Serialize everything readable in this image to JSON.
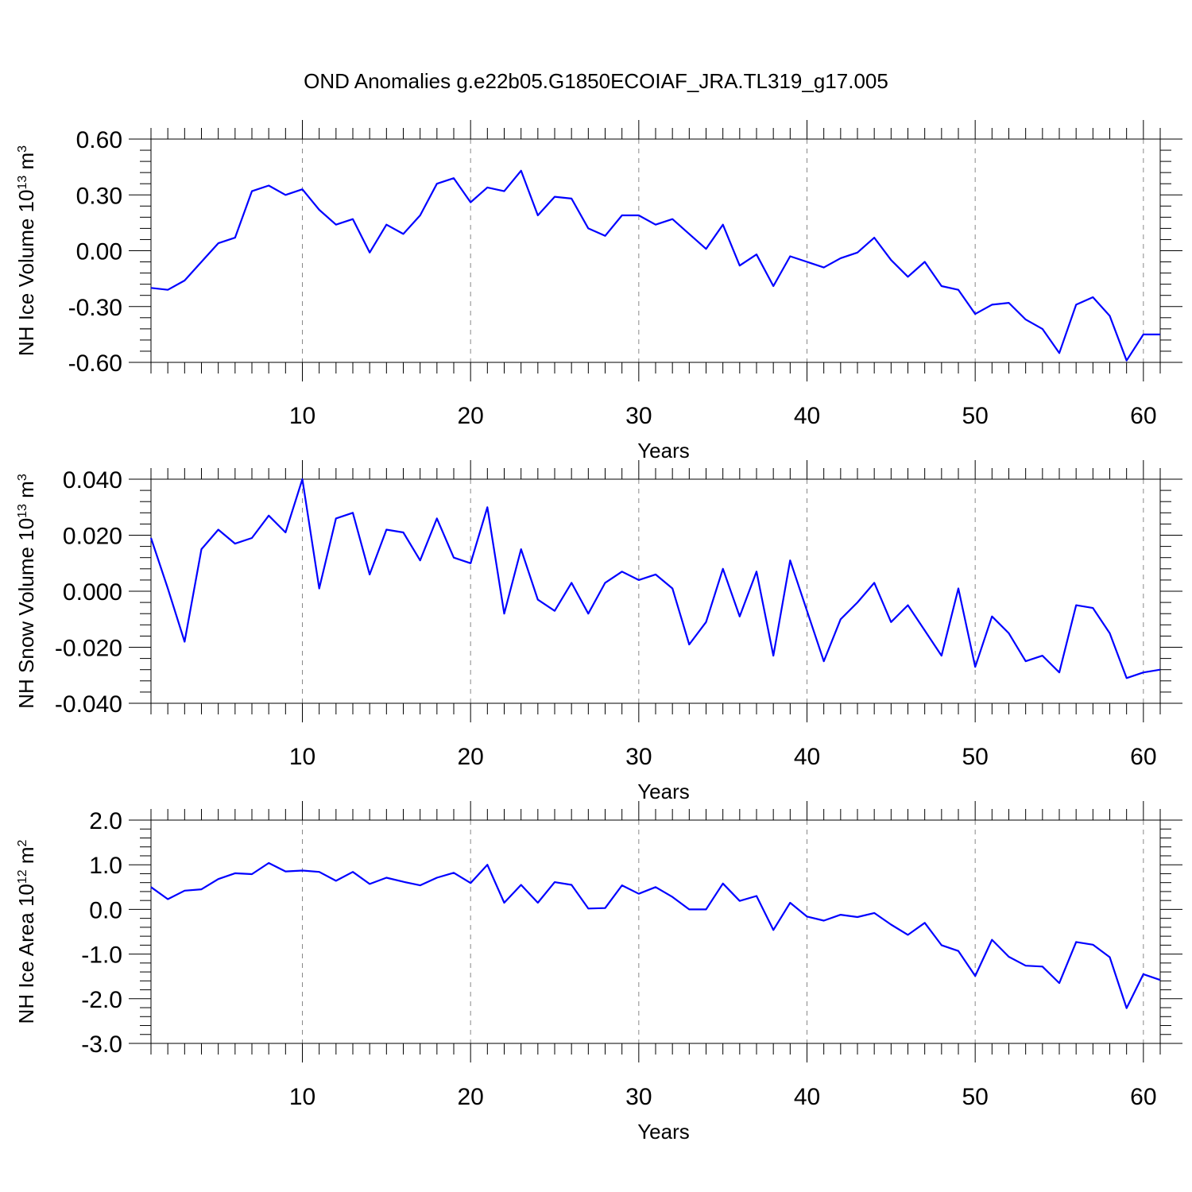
{
  "figure": {
    "title": "OND Anomalies g.e22b05.G1850ECOIAF_JRA.TL319_g17.005"
  },
  "colors": {
    "series": "#0000ff"
  },
  "chart_data": [
    {
      "type": "line",
      "ylabel": {
        "text": "NH Ice Volume 10",
        "sup1": "13",
        "mid": " m",
        "sup2": "3"
      },
      "xlabel": "Years",
      "xlim": [
        1,
        61
      ],
      "ylim": [
        -0.6,
        0.6
      ],
      "xticks": [
        "10",
        "20",
        "30",
        "40",
        "50",
        "60"
      ],
      "yticks": [
        "-0.60",
        "-0.30",
        "0.00",
        "0.30",
        "0.60"
      ],
      "grid_x": true,
      "x": [
        1,
        2,
        3,
        4,
        5,
        6,
        7,
        8,
        9,
        10,
        11,
        12,
        13,
        14,
        15,
        16,
        17,
        18,
        19,
        20,
        21,
        22,
        23,
        24,
        25,
        26,
        27,
        28,
        29,
        30,
        31,
        32,
        33,
        34,
        35,
        36,
        37,
        38,
        39,
        40,
        41,
        42,
        43,
        44,
        45,
        46,
        47,
        48,
        49,
        50,
        51,
        52,
        53,
        54,
        55,
        56,
        57,
        58,
        59,
        60,
        61
      ],
      "series": [
        {
          "values": [
            -0.2,
            -0.21,
            -0.16,
            -0.06,
            0.04,
            0.07,
            0.32,
            0.35,
            0.3,
            0.33,
            0.22,
            0.14,
            0.17,
            -0.01,
            0.14,
            0.09,
            0.19,
            0.36,
            0.39,
            0.26,
            0.34,
            0.32,
            0.43,
            0.19,
            0.29,
            0.28,
            0.12,
            0.08,
            0.19,
            0.19,
            0.14,
            0.17,
            0.09,
            0.01,
            0.14,
            -0.08,
            -0.02,
            -0.19,
            -0.03,
            -0.06,
            -0.09,
            -0.04,
            -0.01,
            0.07,
            -0.05,
            -0.14,
            -0.06,
            -0.19,
            -0.21,
            -0.34,
            -0.29,
            -0.28,
            -0.37,
            -0.42,
            -0.55,
            -0.29,
            -0.25,
            -0.35,
            -0.59,
            -0.45,
            -0.45
          ]
        }
      ]
    },
    {
      "type": "line",
      "ylabel": {
        "text": "NH Snow Volume 10",
        "sup1": "13",
        "mid": " m",
        "sup2": "3"
      },
      "xlabel": "Years",
      "xlim": [
        1,
        61
      ],
      "ylim": [
        -0.04,
        0.04
      ],
      "xticks": [
        "10",
        "20",
        "30",
        "40",
        "50",
        "60"
      ],
      "yticks": [
        "-0.040",
        "-0.020",
        "0.000",
        "0.020",
        "0.040"
      ],
      "grid_x": true,
      "x": [
        1,
        2,
        3,
        4,
        5,
        6,
        7,
        8,
        9,
        10,
        11,
        12,
        13,
        14,
        15,
        16,
        17,
        18,
        19,
        20,
        21,
        22,
        23,
        24,
        25,
        26,
        27,
        28,
        29,
        30,
        31,
        32,
        33,
        34,
        35,
        36,
        37,
        38,
        39,
        40,
        41,
        42,
        43,
        44,
        45,
        46,
        47,
        48,
        49,
        50,
        51,
        52,
        53,
        54,
        55,
        56,
        57,
        58,
        59,
        60,
        61
      ],
      "series": [
        {
          "values": [
            0.019,
            0.001,
            -0.018,
            0.015,
            0.022,
            0.017,
            0.019,
            0.027,
            0.021,
            0.04,
            0.001,
            0.026,
            0.028,
            0.006,
            0.022,
            0.021,
            0.011,
            0.026,
            0.012,
            0.01,
            0.03,
            -0.008,
            0.015,
            -0.003,
            -0.007,
            0.003,
            -0.008,
            0.003,
            0.007,
            0.004,
            0.006,
            0.001,
            -0.019,
            -0.011,
            0.008,
            -0.009,
            0.007,
            -0.023,
            0.011,
            -0.007,
            -0.025,
            -0.01,
            -0.004,
            0.003,
            -0.011,
            -0.005,
            -0.014,
            -0.023,
            0.001,
            -0.027,
            -0.009,
            -0.015,
            -0.025,
            -0.023,
            -0.029,
            -0.005,
            -0.006,
            -0.015,
            -0.031,
            -0.029,
            -0.028
          ]
        }
      ]
    },
    {
      "type": "line",
      "ylabel": {
        "text": "NH Ice Area 10",
        "sup1": "12",
        "mid": " m",
        "sup2": "2"
      },
      "xlabel": "Years",
      "xlim": [
        1,
        61
      ],
      "ylim": [
        -3.0,
        2.0
      ],
      "xticks": [
        "10",
        "20",
        "30",
        "40",
        "50",
        "60"
      ],
      "yticks": [
        "-3.0",
        "-2.0",
        "-1.0",
        "0.0",
        "1.0",
        "2.0"
      ],
      "grid_x": true,
      "x": [
        1,
        2,
        3,
        4,
        5,
        6,
        7,
        8,
        9,
        10,
        11,
        12,
        13,
        14,
        15,
        16,
        17,
        18,
        19,
        20,
        21,
        22,
        23,
        24,
        25,
        26,
        27,
        28,
        29,
        30,
        31,
        32,
        33,
        34,
        35,
        36,
        37,
        38,
        39,
        40,
        41,
        42,
        43,
        44,
        45,
        46,
        47,
        48,
        49,
        50,
        51,
        52,
        53,
        54,
        55,
        56,
        57,
        58,
        59,
        60,
        61
      ],
      "series": [
        {
          "values": [
            0.5,
            0.23,
            0.42,
            0.45,
            0.68,
            0.81,
            0.79,
            1.04,
            0.85,
            0.87,
            0.84,
            0.64,
            0.84,
            0.57,
            0.71,
            0.62,
            0.54,
            0.71,
            0.82,
            0.59,
            1.0,
            0.15,
            0.55,
            0.15,
            0.61,
            0.55,
            0.02,
            0.03,
            0.54,
            0.35,
            0.5,
            0.28,
            0.0,
            0.0,
            0.58,
            0.19,
            0.3,
            -0.46,
            0.15,
            -0.16,
            -0.25,
            -0.12,
            -0.17,
            -0.08,
            -0.34,
            -0.57,
            -0.3,
            -0.8,
            -0.93,
            -1.49,
            -0.68,
            -1.06,
            -1.26,
            -1.28,
            -1.65,
            -0.73,
            -0.79,
            -1.07,
            -2.21,
            -1.45,
            -1.58
          ]
        }
      ]
    }
  ]
}
